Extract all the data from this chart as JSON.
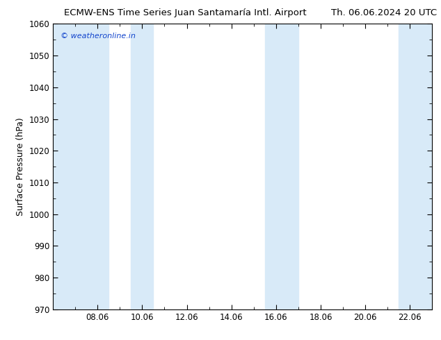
{
  "title_left": "ECMW-ENS Time Series Juan Santamaría Intl. Airport",
  "title_right": "Th. 06.06.2024 20 UTC",
  "ylabel": "Surface Pressure (hPa)",
  "ylim": [
    970,
    1060
  ],
  "yticks": [
    970,
    980,
    990,
    1000,
    1010,
    1020,
    1030,
    1040,
    1050,
    1060
  ],
  "xtick_labels": [
    "08.06",
    "10.06",
    "12.06",
    "14.06",
    "16.06",
    "18.06",
    "20.06",
    "22.06"
  ],
  "xtick_positions": [
    2,
    4,
    6,
    8,
    10,
    12,
    14,
    16
  ],
  "xlim": [
    0,
    17
  ],
  "shaded_bands": [
    {
      "x_start": 0,
      "x_end": 2.5
    },
    {
      "x_start": 3.5,
      "x_end": 4.5
    },
    {
      "x_start": 9.5,
      "x_end": 11.0
    },
    {
      "x_start": 15.5,
      "x_end": 17
    }
  ],
  "band_color": "#d8eaf8",
  "background_color": "#ffffff",
  "watermark": "© weatheronline.in",
  "watermark_color": "#1144cc",
  "title_fontsize": 9.5,
  "tick_fontsize": 8.5,
  "ylabel_fontsize": 9,
  "title_color": "#000000"
}
